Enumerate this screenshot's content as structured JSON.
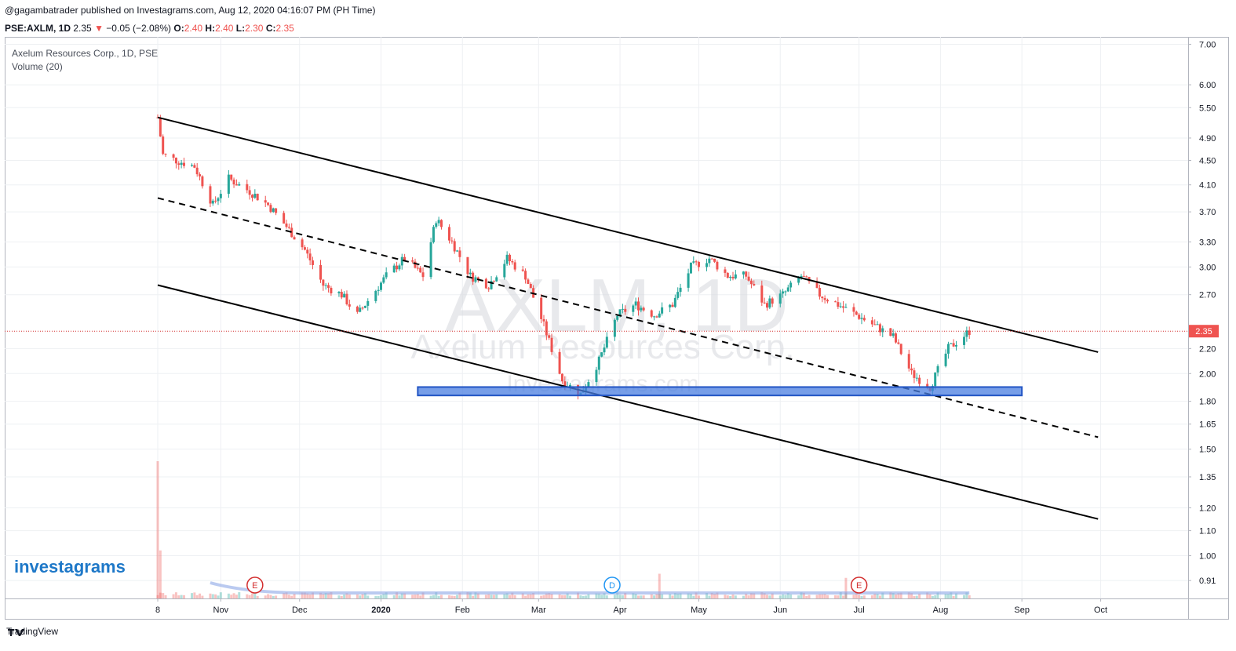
{
  "header": {
    "published_line": "@gagambatrader published on Investagrams.com, Aug 12, 2020 04:16:07 PM (PH Time)",
    "symbol": "PSE:AXLM, 1D",
    "last": "2.35",
    "change": "−0.05 (−2.08%)",
    "o_label": "O:",
    "o": "2.40",
    "h_label": "H:",
    "h": "2.40",
    "l_label": "L:",
    "l": "2.30",
    "c_label": "C:",
    "c": "2.35"
  },
  "legend": {
    "title": "Axelum Resources Corp., 1D, PSE",
    "indicator": "Volume (20)"
  },
  "watermark": {
    "symbol": "AXLM, 1D",
    "name": "Axelum Resources Corp.",
    "site": "Investagrams.com"
  },
  "brand": {
    "logo": "investagrams",
    "footer": "TradingView"
  },
  "colors": {
    "up": "#26a69a",
    "down": "#ef5350",
    "support": "#4a7ee0",
    "price_line": "#d32f2f"
  },
  "last_price_label": "2.35",
  "events": [
    {
      "label": "E",
      "color": "#d32f2f"
    },
    {
      "label": "D",
      "color": "#2196f3"
    },
    {
      "label": "E",
      "color": "#d32f2f"
    }
  ],
  "chart_data": {
    "type": "candlestick",
    "y_scale": "log",
    "ylim": [
      0.85,
      7.2
    ],
    "y_ticks": [
      "7.00",
      "6.00",
      "5.50",
      "4.90",
      "4.50",
      "4.10",
      "3.70",
      "3.30",
      "3.00",
      "2.70",
      "2.20",
      "2.00",
      "1.80",
      "1.65",
      "1.50",
      "1.35",
      "1.20",
      "1.10",
      "1.00",
      "0.91"
    ],
    "x_ticks": [
      "8",
      "Nov",
      "Dec",
      "2020",
      "Feb",
      "Mar",
      "Apr",
      "May",
      "Jun",
      "Jul",
      "Aug",
      "Sep",
      "Oct"
    ],
    "price_series": [
      [
        "2019-10-08",
        5.3
      ],
      [
        "2019-10-10",
        4.6
      ],
      [
        "2019-10-15",
        4.5
      ],
      [
        "2019-10-22",
        4.4
      ],
      [
        "2019-10-29",
        3.8
      ],
      [
        "2019-11-04",
        4.2
      ],
      [
        "2019-11-12",
        4.0
      ],
      [
        "2019-11-19",
        3.8
      ],
      [
        "2019-11-26",
        3.5
      ],
      [
        "2019-12-03",
        3.2
      ],
      [
        "2019-12-10",
        2.8
      ],
      [
        "2019-12-17",
        2.7
      ],
      [
        "2019-12-23",
        2.5
      ],
      [
        "2020-01-03",
        2.9
      ],
      [
        "2020-01-10",
        3.1
      ],
      [
        "2020-01-17",
        2.9
      ],
      [
        "2020-01-22",
        3.6
      ],
      [
        "2020-01-28",
        3.3
      ],
      [
        "2020-02-04",
        2.9
      ],
      [
        "2020-02-11",
        2.8
      ],
      [
        "2020-02-18",
        3.1
      ],
      [
        "2020-02-25",
        2.9
      ],
      [
        "2020-03-03",
        2.4
      ],
      [
        "2020-03-10",
        1.95
      ],
      [
        "2020-03-17",
        1.85
      ],
      [
        "2020-03-24",
        2.1
      ],
      [
        "2020-03-31",
        2.5
      ],
      [
        "2020-04-07",
        2.6
      ],
      [
        "2020-04-14",
        2.5
      ],
      [
        "2020-04-21",
        2.6
      ],
      [
        "2020-04-28",
        3.0
      ],
      [
        "2020-05-05",
        3.1
      ],
      [
        "2020-05-12",
        2.9
      ],
      [
        "2020-05-19",
        2.9
      ],
      [
        "2020-05-26",
        2.6
      ],
      [
        "2020-06-02",
        2.7
      ],
      [
        "2020-06-09",
        2.9
      ],
      [
        "2020-06-16",
        2.7
      ],
      [
        "2020-06-23",
        2.6
      ],
      [
        "2020-06-30",
        2.5
      ],
      [
        "2020-07-07",
        2.4
      ],
      [
        "2020-07-14",
        2.3
      ],
      [
        "2020-07-21",
        2.0
      ],
      [
        "2020-07-28",
        1.9
      ],
      [
        "2020-08-04",
        2.2
      ],
      [
        "2020-08-12",
        2.35
      ]
    ],
    "volume": {
      "max_label": "",
      "spikes": [
        [
          "2019-10-08",
          1.0
        ],
        [
          "2019-10-09",
          0.35
        ],
        [
          "2020-04-16",
          0.18
        ],
        [
          "2020-06-26",
          0.15
        ]
      ]
    },
    "drawings": {
      "channel_upper": [
        [
          "2019-10-08",
          5.3
        ],
        [
          "2020-09-30",
          2.17
        ]
      ],
      "channel_middle": [
        [
          "2019-10-08",
          3.9
        ],
        [
          "2020-09-30",
          1.57
        ]
      ],
      "channel_lower": [
        [
          "2019-10-08",
          2.8
        ],
        [
          "2020-09-30",
          1.15
        ]
      ],
      "support_zone": {
        "from": "2020-01-15",
        "to": "2020-09-01",
        "low": 1.84,
        "high": 1.9
      }
    },
    "legend_placement": "top-left",
    "grid": true
  }
}
